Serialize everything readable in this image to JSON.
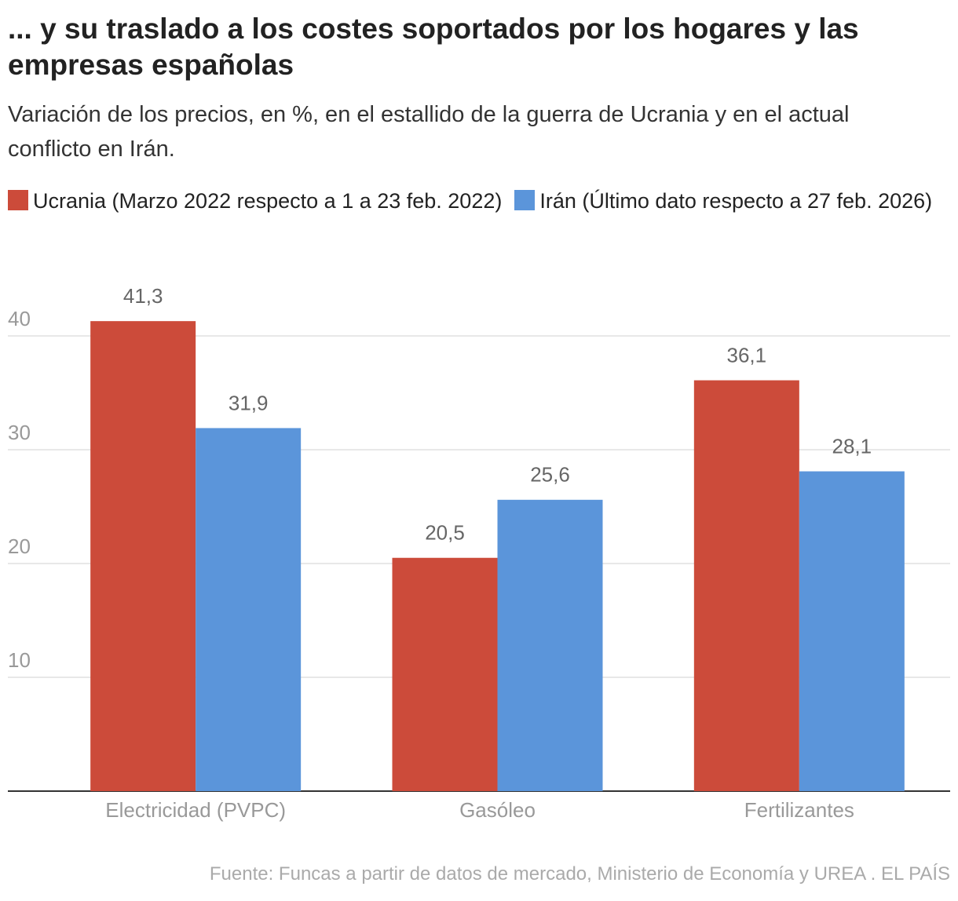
{
  "chart_data": {
    "type": "bar",
    "title": "... y su traslado a los costes soportados por los hogares y las empresas españolas",
    "subtitle": "Variación de los precios, en %, en el estallido de la guerra de Ucrania y en el actual conflicto en Irán.",
    "categories": [
      "Electricidad (PVPC)",
      "Gasóleo",
      "Fertilizantes"
    ],
    "series": [
      {
        "name": "Ucrania (Marzo 2022 respecto a 1 a 23 feb. 2022)",
        "color": "#cc4b3a",
        "values": [
          41.3,
          20.5,
          36.1
        ],
        "value_labels": [
          "41,3",
          "20,5",
          "36,1"
        ]
      },
      {
        "name": "Irán (Último dato respecto a 27 feb. 2026)",
        "color": "#5b95da",
        "values": [
          31.9,
          25.6,
          28.1
        ],
        "value_labels": [
          "31,9",
          "25,6",
          "28,1"
        ]
      }
    ],
    "ylim": [
      0,
      44
    ],
    "yticks": [
      10,
      20,
      30,
      40
    ],
    "grid": true,
    "legend": "top",
    "source": "Fuente: Funcas a partir de datos de mercado, Ministerio de Economía y UREA . EL PAÍS"
  }
}
